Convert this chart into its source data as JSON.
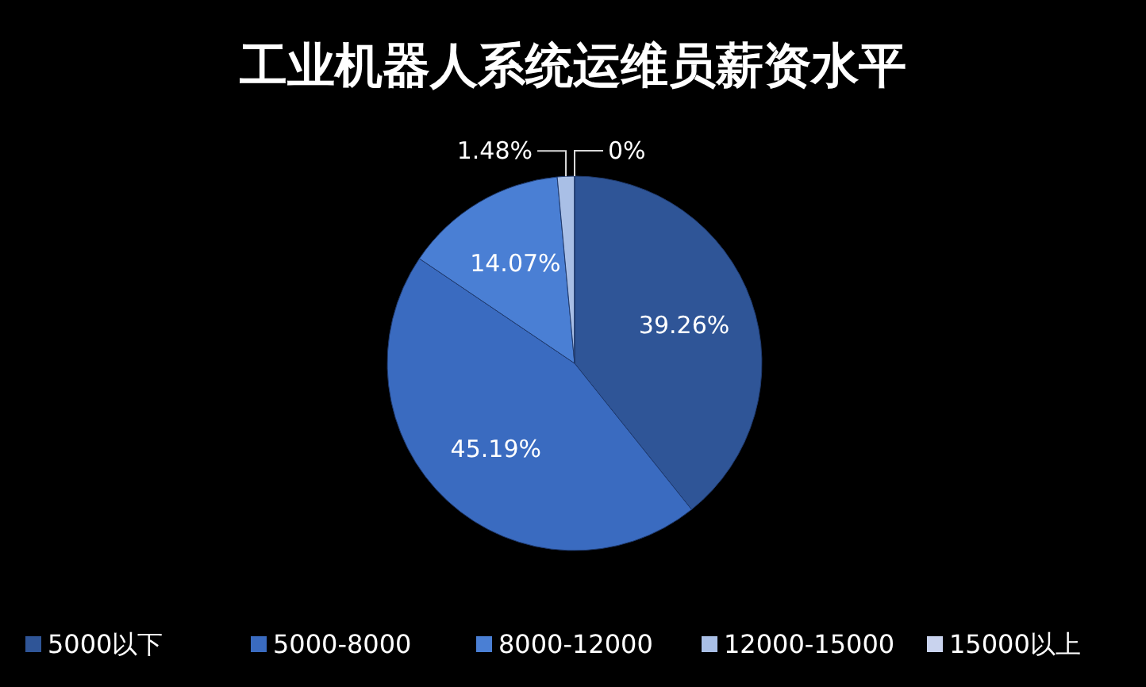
{
  "chart_data": {
    "type": "pie",
    "title": "工业机器人系统运维员薪资水平",
    "categories": [
      "5000以下",
      "5000-8000",
      "8000-12000",
      "12000-15000",
      "15000以上"
    ],
    "values": [
      39.26,
      45.19,
      14.07,
      1.48,
      0
    ],
    "colors": [
      "#2f5597",
      "#3a6bc0",
      "#4a7fd4",
      "#a9bfe6",
      "#c9d3ee"
    ],
    "value_labels": [
      "39.26%",
      "45.19%",
      "14.07%",
      "1.48%",
      "0%"
    ],
    "legend": "bottom"
  }
}
